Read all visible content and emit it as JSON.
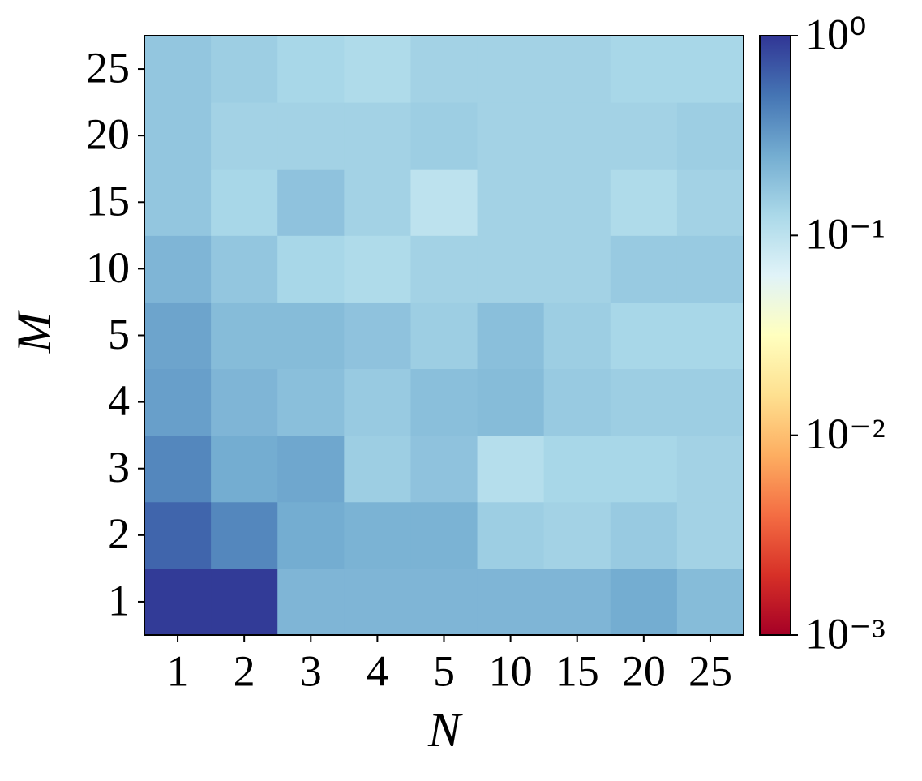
{
  "chart_data": {
    "type": "heatmap",
    "x_label": "N",
    "y_label": "M",
    "x_categories": [
      "1",
      "2",
      "3",
      "4",
      "5",
      "10",
      "15",
      "20",
      "25"
    ],
    "y_categories": [
      "1",
      "2",
      "3",
      "4",
      "5",
      "10",
      "15",
      "20",
      "25"
    ],
    "values": [
      [
        0.95,
        0.95,
        0.22,
        0.22,
        0.22,
        0.22,
        0.22,
        0.25,
        0.2
      ],
      [
        0.6,
        0.4,
        0.25,
        0.23,
        0.23,
        0.15,
        0.14,
        0.16,
        0.14
      ],
      [
        0.4,
        0.25,
        0.27,
        0.15,
        0.18,
        0.11,
        0.13,
        0.13,
        0.14
      ],
      [
        0.3,
        0.22,
        0.19,
        0.16,
        0.19,
        0.2,
        0.16,
        0.15,
        0.15
      ],
      [
        0.28,
        0.2,
        0.2,
        0.18,
        0.15,
        0.19,
        0.15,
        0.13,
        0.13
      ],
      [
        0.22,
        0.17,
        0.13,
        0.12,
        0.14,
        0.14,
        0.14,
        0.16,
        0.16
      ],
      [
        0.17,
        0.13,
        0.18,
        0.14,
        0.1,
        0.14,
        0.14,
        0.12,
        0.14
      ],
      [
        0.17,
        0.14,
        0.14,
        0.14,
        0.15,
        0.14,
        0.14,
        0.14,
        0.15
      ],
      [
        0.17,
        0.15,
        0.13,
        0.12,
        0.14,
        0.14,
        0.14,
        0.13,
        0.13
      ]
    ],
    "colormap": "RdYlBu",
    "color_scale": "log",
    "clim": [
      0.001,
      1
    ],
    "cticks": [
      {
        "value": 0.001,
        "label": "10⁻³"
      },
      {
        "value": 0.01,
        "label": "10⁻²"
      },
      {
        "value": 0.1,
        "label": "10⁻¹"
      },
      {
        "value": 1,
        "label": "10⁰"
      }
    ]
  }
}
